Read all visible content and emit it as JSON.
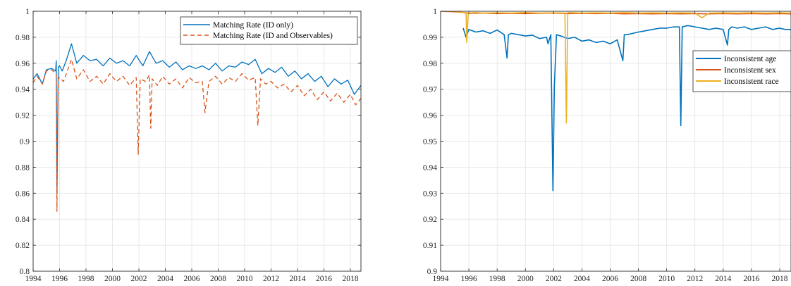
{
  "chart_data": [
    {
      "type": "line",
      "title": "",
      "xlabel": "",
      "ylabel": "",
      "xlim": [
        1994,
        2018.8
      ],
      "ylim": [
        0.8,
        1.0
      ],
      "xticks": [
        1994,
        1996,
        1998,
        2000,
        2002,
        2004,
        2006,
        2008,
        2010,
        2012,
        2014,
        2016,
        2018
      ],
      "xtick_labels": [
        "1994",
        "1996",
        "1998",
        "2000",
        "2002",
        "2004",
        "2006",
        "2008",
        "2010",
        "2012",
        "2014",
        "2016",
        "2018"
      ],
      "yticks": [
        0.8,
        0.82,
        0.84,
        0.86,
        0.88,
        0.9,
        0.92,
        0.94,
        0.96,
        0.98,
        1.0
      ],
      "ytick_labels": [
        "0.8",
        "0.82",
        "0.84",
        "0.86",
        "0.88",
        "0.9",
        "0.92",
        "0.94",
        "0.96",
        "0.98",
        "1"
      ],
      "grid": true,
      "legend_position": "top-right",
      "series": [
        {
          "name": "Matching Rate (ID only)",
          "color": "#0072BD",
          "dash": "solid",
          "x": [
            1994.0,
            1994.3,
            1994.7,
            1995.0,
            1995.4,
            1995.7,
            1995.75,
            1995.8,
            1995.9,
            1996.0,
            1996.2,
            1996.5,
            1996.9,
            1997.3,
            1997.8,
            1998.3,
            1998.8,
            1999.3,
            1999.8,
            2000.3,
            2000.8,
            2001.3,
            2001.8,
            2002.3,
            2002.8,
            2003.3,
            2003.8,
            2004.3,
            2004.8,
            2005.3,
            2005.8,
            2006.3,
            2006.8,
            2007.3,
            2007.8,
            2008.3,
            2008.8,
            2009.3,
            2009.8,
            2010.3,
            2010.8,
            2011.3,
            2011.8,
            2012.3,
            2012.8,
            2013.3,
            2013.8,
            2014.3,
            2014.8,
            2015.3,
            2015.8,
            2016.3,
            2016.8,
            2017.3,
            2017.8,
            2018.3,
            2018.8
          ],
          "y": [
            0.948,
            0.952,
            0.944,
            0.955,
            0.956,
            0.954,
            0.962,
            0.86,
            0.957,
            0.958,
            0.954,
            0.962,
            0.975,
            0.96,
            0.966,
            0.962,
            0.963,
            0.958,
            0.964,
            0.96,
            0.962,
            0.958,
            0.966,
            0.958,
            0.969,
            0.96,
            0.962,
            0.957,
            0.961,
            0.955,
            0.958,
            0.956,
            0.958,
            0.955,
            0.96,
            0.954,
            0.958,
            0.957,
            0.961,
            0.959,
            0.963,
            0.952,
            0.956,
            0.953,
            0.957,
            0.95,
            0.954,
            0.948,
            0.952,
            0.946,
            0.95,
            0.942,
            0.948,
            0.944,
            0.947,
            0.936,
            0.943
          ]
        },
        {
          "name": "Matching Rate (ID and Observables)",
          "color": "#D95319",
          "dash": "dashed",
          "x": [
            1994.0,
            1994.3,
            1994.7,
            1995.0,
            1995.4,
            1995.7,
            1995.75,
            1995.8,
            1995.9,
            1996.0,
            1996.3,
            1996.9,
            1997.3,
            1997.8,
            1998.3,
            1998.8,
            1999.3,
            1999.8,
            2000.3,
            2000.8,
            2001.3,
            2001.8,
            2001.95,
            2002.1,
            2002.5,
            2002.8,
            2002.9,
            2003.0,
            2003.4,
            2003.8,
            2004.3,
            2004.8,
            2005.3,
            2005.8,
            2006.3,
            2006.8,
            2007.0,
            2007.3,
            2007.8,
            2008.3,
            2008.8,
            2009.3,
            2009.8,
            2010.3,
            2010.8,
            2011.0,
            2011.2,
            2011.6,
            2012.0,
            2012.5,
            2013.0,
            2013.5,
            2014.0,
            2014.5,
            2015.0,
            2015.5,
            2016.0,
            2016.5,
            2017.0,
            2017.5,
            2018.0,
            2018.4,
            2018.8
          ],
          "y": [
            0.945,
            0.95,
            0.944,
            0.954,
            0.955,
            0.952,
            0.951,
            0.846,
            0.948,
            0.949,
            0.946,
            0.963,
            0.948,
            0.955,
            0.946,
            0.95,
            0.944,
            0.952,
            0.946,
            0.95,
            0.943,
            0.949,
            0.89,
            0.948,
            0.946,
            0.951,
            0.91,
            0.948,
            0.943,
            0.95,
            0.944,
            0.948,
            0.941,
            0.949,
            0.945,
            0.946,
            0.922,
            0.946,
            0.95,
            0.944,
            0.949,
            0.946,
            0.952,
            0.947,
            0.949,
            0.912,
            0.948,
            0.944,
            0.946,
            0.941,
            0.944,
            0.938,
            0.943,
            0.935,
            0.94,
            0.932,
            0.938,
            0.931,
            0.937,
            0.93,
            0.936,
            0.928,
            0.933
          ]
        }
      ]
    },
    {
      "type": "line",
      "title": "",
      "xlabel": "",
      "ylabel": "",
      "xlim": [
        1994,
        2018.8
      ],
      "ylim": [
        0.9,
        1.0
      ],
      "xticks": [
        1994,
        1996,
        1998,
        2000,
        2002,
        2004,
        2006,
        2008,
        2010,
        2012,
        2014,
        2016,
        2018
      ],
      "xtick_labels": [
        "1994",
        "1996",
        "1998",
        "2000",
        "2002",
        "2004",
        "2006",
        "2008",
        "2010",
        "2012",
        "2014",
        "2016",
        "2018"
      ],
      "yticks": [
        0.9,
        0.91,
        0.92,
        0.93,
        0.94,
        0.95,
        0.96,
        0.97,
        0.98,
        0.99,
        1.0
      ],
      "ytick_labels": [
        "0.9",
        "0.91",
        "0.92",
        "0.93",
        "0.94",
        "0.95",
        "0.96",
        "0.97",
        "0.98",
        "0.99",
        "1"
      ],
      "grid": true,
      "legend_position": "right",
      "series": [
        {
          "name": "Inconsistent age",
          "color": "#0072BD",
          "dash": "solid",
          "x": [
            1995.6,
            1995.8,
            1996.0,
            1996.5,
            1997.0,
            1997.5,
            1998.0,
            1998.5,
            1998.7,
            1998.8,
            1999.0,
            1999.5,
            2000.0,
            2000.5,
            2001.0,
            2001.5,
            2001.6,
            2001.8,
            2001.95,
            2002.05,
            2002.2,
            2002.5,
            2003.0,
            2003.5,
            2004.0,
            2004.5,
            2005.0,
            2005.5,
            2006.0,
            2006.5,
            2006.9,
            2007.0,
            2007.2,
            2007.6,
            2008.0,
            2008.5,
            2009.0,
            2009.5,
            2010.0,
            2010.5,
            2010.9,
            2011.0,
            2011.1,
            2011.5,
            2012.0,
            2012.5,
            2013.0,
            2013.5,
            2014.0,
            2014.3,
            2014.4,
            2014.6,
            2015.0,
            2015.5,
            2016.0,
            2016.5,
            2017.0,
            2017.5,
            2018.0,
            2018.4,
            2018.8
          ],
          "y": [
            0.9935,
            0.99,
            0.993,
            0.992,
            0.9925,
            0.9915,
            0.9928,
            0.991,
            0.982,
            0.991,
            0.9915,
            0.991,
            0.9905,
            0.9908,
            0.9895,
            0.99,
            0.9875,
            0.991,
            0.931,
            0.971,
            0.991,
            0.9905,
            0.9895,
            0.99,
            0.9885,
            0.989,
            0.988,
            0.9885,
            0.9875,
            0.989,
            0.981,
            0.991,
            0.991,
            0.9915,
            0.992,
            0.9925,
            0.993,
            0.9935,
            0.9935,
            0.994,
            0.994,
            0.956,
            0.994,
            0.9945,
            0.994,
            0.9935,
            0.993,
            0.9935,
            0.993,
            0.987,
            0.993,
            0.994,
            0.9935,
            0.994,
            0.993,
            0.9935,
            0.994,
            0.993,
            0.9935,
            0.993,
            0.993
          ]
        },
        {
          "name": "Inconsistent sex",
          "color": "#D95319",
          "dash": "solid",
          "x": [
            1994.0,
            1995.0,
            1995.6,
            1996.0,
            1997.0,
            1998.0,
            1999.0,
            2000.0,
            2001.0,
            2002.0,
            2003.0,
            2004.0,
            2005.0,
            2006.0,
            2007.0,
            2008.0,
            2009.0,
            2010.0,
            2011.0,
            2012.0,
            2013.0,
            2014.0,
            2015.0,
            2016.0,
            2017.0,
            2018.0,
            2018.8
          ],
          "y": [
            1.0,
            0.9998,
            0.9995,
            0.9992,
            0.9993,
            0.9991,
            0.9992,
            0.9991,
            0.9992,
            0.9993,
            0.9991,
            0.9992,
            0.9991,
            0.9992,
            0.999,
            0.9991,
            0.999,
            0.9991,
            0.999,
            0.9991,
            0.999,
            0.9991,
            0.999,
            0.9991,
            0.999,
            0.9991,
            0.999
          ]
        },
        {
          "name": "Inconsistent race",
          "color": "#EDB120",
          "dash": "solid",
          "x": [
            1994.0,
            1995.0,
            1995.5,
            1995.8,
            1995.85,
            1995.95,
            1996.5,
            1997.0,
            1998.0,
            1999.0,
            2000.0,
            2001.0,
            2002.0,
            2002.8,
            2002.9,
            2003.0,
            2004.0,
            2005.0,
            2006.0,
            2007.0,
            2008.0,
            2009.0,
            2010.0,
            2011.0,
            2012.0,
            2012.5,
            2013.0,
            2014.0,
            2015.0,
            2016.0,
            2017.0,
            2018.0,
            2018.8
          ],
          "y": [
            1.0,
            1.0,
            0.9995,
            0.9995,
            0.988,
            0.9993,
            0.9995,
            0.9993,
            0.9994,
            0.9993,
            0.9995,
            0.9993,
            0.9994,
            0.9993,
            0.957,
            0.9995,
            0.9993,
            0.9994,
            0.9993,
            0.9995,
            0.9993,
            0.9994,
            0.9993,
            0.9994,
            0.9993,
            0.9975,
            0.9993,
            0.9994,
            0.9993,
            0.9994,
            0.9993,
            0.9994,
            0.9993
          ]
        }
      ]
    }
  ]
}
